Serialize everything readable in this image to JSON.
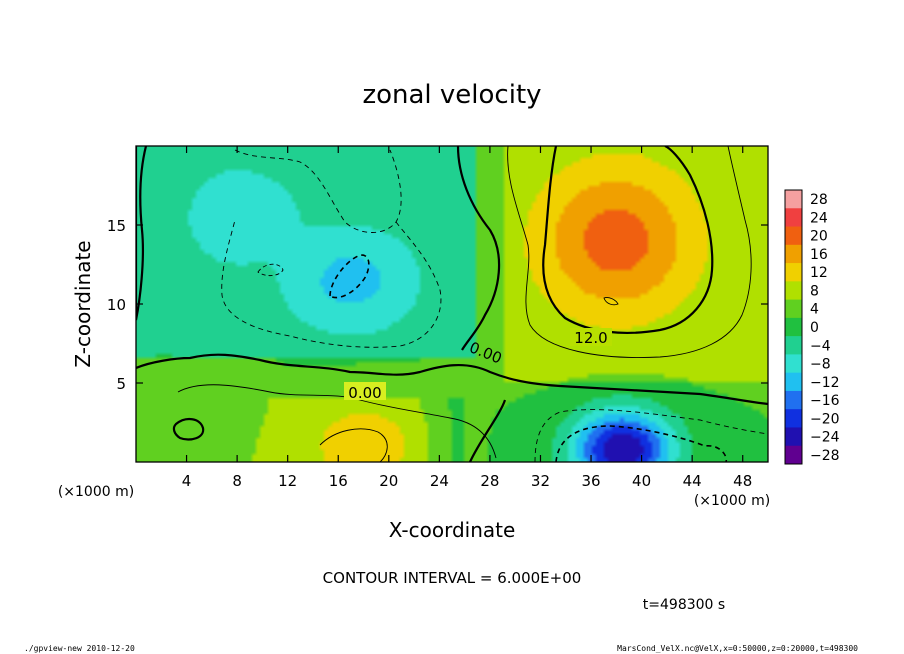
{
  "chart_data": {
    "type": "heatmap",
    "subtype": "filled-contour",
    "title": "zonal velocity",
    "xlabel": "X-coordinate",
    "ylabel": "Z-coordinate",
    "x_unit_left": "(×1000 m)",
    "x_unit_right": "(×1000 m)",
    "xlim": [
      0,
      50
    ],
    "ylim": [
      0,
      20
    ],
    "x_ticks": [
      4,
      8,
      12,
      16,
      20,
      24,
      28,
      32,
      36,
      40,
      44,
      48
    ],
    "x_tick_labels": [
      "4",
      "8",
      "12",
      "16",
      "20",
      "24",
      "28",
      "32",
      "36",
      "40",
      "44",
      "48"
    ],
    "y_ticks": [
      5,
      10,
      15
    ],
    "y_tick_labels": [
      "5",
      "10",
      "15"
    ],
    "contour_interval_text": "CONTOUR INTERVAL = 6.000E+00",
    "time_text": "t=498300 s",
    "contour_labels": [
      "0.00",
      "0.00",
      "12.0"
    ],
    "colorbar": {
      "levels": [
        28,
        24,
        20,
        16,
        12,
        8,
        4,
        0,
        -4,
        -8,
        -12,
        -16,
        -20,
        -24,
        -28
      ],
      "labels": [
        "28",
        "24",
        "20",
        "16",
        "12",
        "8",
        "4",
        "0",
        "−4",
        "−8",
        "−12",
        "−16",
        "−20",
        "−24",
        "−28"
      ],
      "colors": [
        "#f5a0a0",
        "#f04040",
        "#f06010",
        "#f0a000",
        "#f0d000",
        "#b0e000",
        "#60d020",
        "#20c040",
        "#20d090",
        "#30e0d0",
        "#20c0f0",
        "#2070f0",
        "#1030e0",
        "#2010b0",
        "#600090"
      ]
    },
    "field_features": [
      {
        "kind": "max",
        "x": 38,
        "z": 14,
        "value": 20
      },
      {
        "kind": "max",
        "x": 18,
        "z": 1,
        "value": 14
      },
      {
        "kind": "min",
        "x": 38.5,
        "z": 0.8,
        "value": -26
      },
      {
        "kind": "min",
        "x": 17,
        "z": 11.5,
        "value": -12
      },
      {
        "kind": "min",
        "x": 8,
        "z": 15.5,
        "value": -9
      },
      {
        "kind": "max",
        "x": 4,
        "z": 3,
        "value": 5
      }
    ]
  },
  "footer": {
    "left": "./gpview-new   2010-12-20",
    "right": "MarsCond_VelX.nc@VelX,x=0:50000,z=0:20000,t=498300"
  }
}
